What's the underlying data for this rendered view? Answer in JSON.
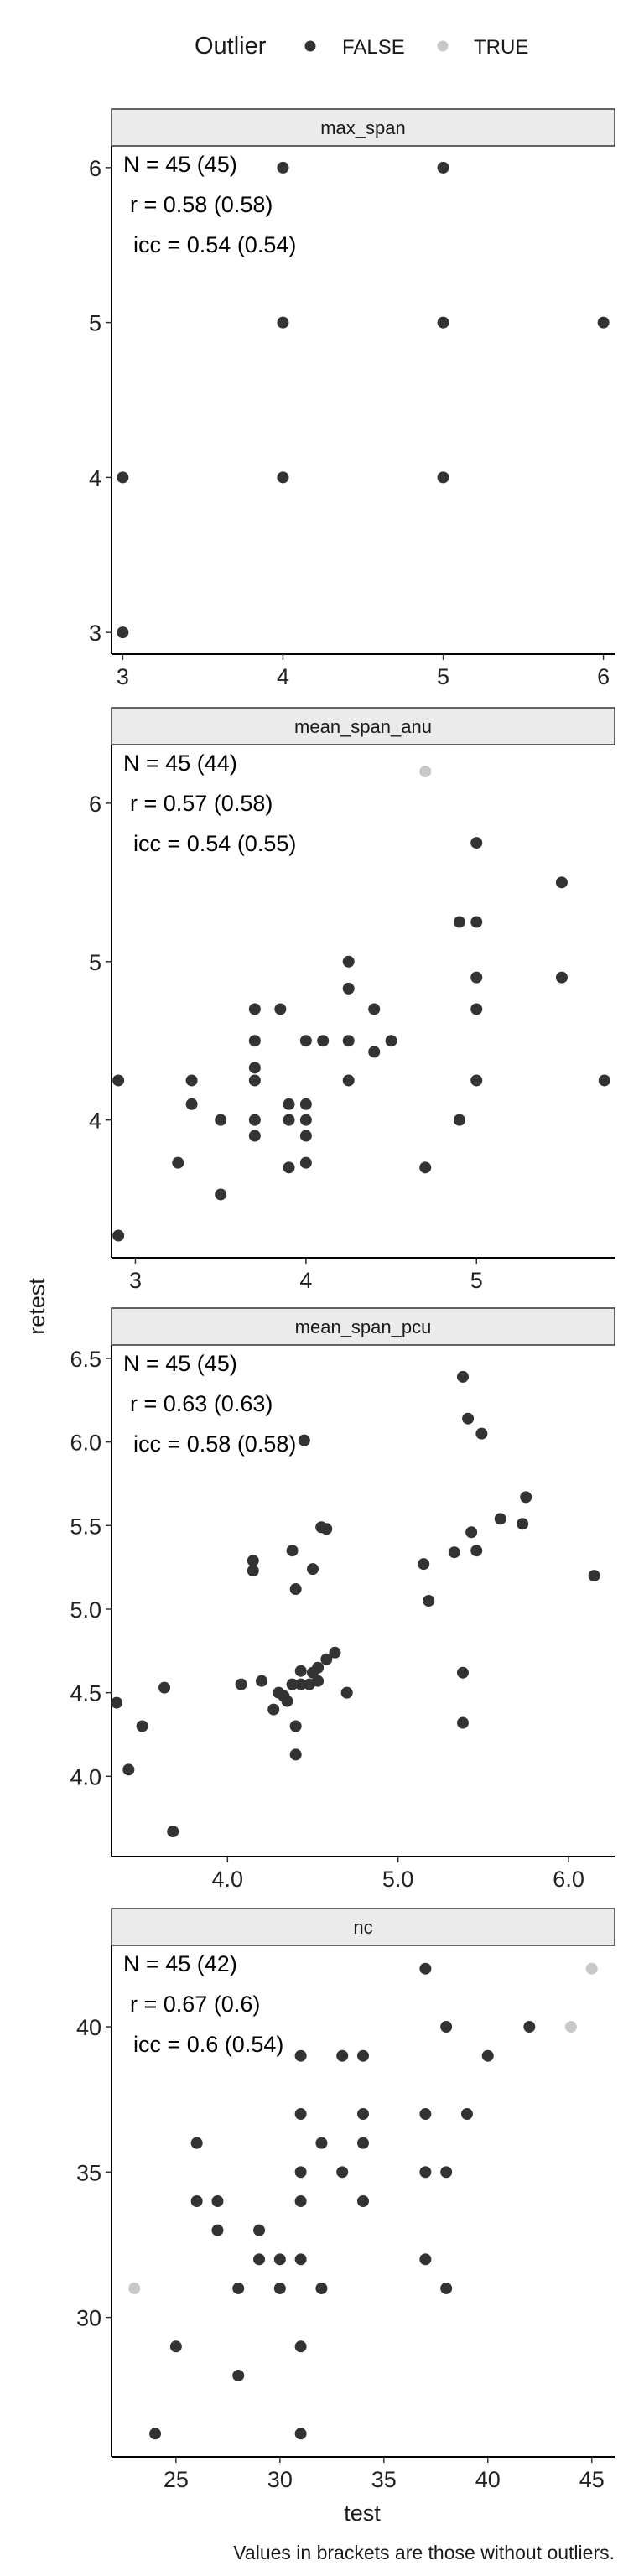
{
  "chart_data": {
    "type": "scatter",
    "xlabel": "test",
    "ylabel": "retest",
    "caption": "Values in brackets are those without outliers.",
    "legend": {
      "title": "Outlier",
      "placement": "top",
      "items": [
        {
          "label": "FALSE",
          "color": "#333333"
        },
        {
          "label": "TRUE",
          "color": "#c8c8c8"
        }
      ]
    },
    "facets": [
      {
        "name": "max_span",
        "stats": [
          "N = 45 (45)",
          "r = 0.58 (0.58)",
          "icc = 0.54 (0.54)"
        ],
        "xlim": [
          2.93,
          6.07
        ],
        "ylim": [
          2.86,
          6.14
        ],
        "xticks": [
          3,
          4,
          5,
          6
        ],
        "yticks": [
          3,
          4,
          5,
          6
        ],
        "tick_decimals": 0,
        "points": [
          {
            "x": 3,
            "y": 3,
            "outlier": false
          },
          {
            "x": 3,
            "y": 4,
            "outlier": false
          },
          {
            "x": 4,
            "y": 4,
            "outlier": false
          },
          {
            "x": 4,
            "y": 5,
            "outlier": false
          },
          {
            "x": 4,
            "y": 6,
            "outlier": false
          },
          {
            "x": 5,
            "y": 4,
            "outlier": false
          },
          {
            "x": 5,
            "y": 5,
            "outlier": false
          },
          {
            "x": 5,
            "y": 6,
            "outlier": false
          },
          {
            "x": 6,
            "y": 5,
            "outlier": false
          }
        ]
      },
      {
        "name": "mean_span_anu",
        "stats": [
          "N = 45 (44)",
          "r = 0.57 (0.58)",
          "icc = 0.54 (0.55)"
        ],
        "xlim": [
          2.86,
          5.81
        ],
        "ylim": [
          3.13,
          6.37
        ],
        "xticks": [
          3,
          4,
          5
        ],
        "yticks": [
          4,
          5,
          6
        ],
        "tick_decimals": 0,
        "points": [
          {
            "x": 2.9,
            "y": 3.27,
            "outlier": false
          },
          {
            "x": 2.9,
            "y": 4.25,
            "outlier": false
          },
          {
            "x": 3.25,
            "y": 3.73,
            "outlier": false
          },
          {
            "x": 3.33,
            "y": 4.1,
            "outlier": false
          },
          {
            "x": 3.33,
            "y": 4.25,
            "outlier": false
          },
          {
            "x": 3.5,
            "y": 3.53,
            "outlier": false
          },
          {
            "x": 3.5,
            "y": 4.0,
            "outlier": false
          },
          {
            "x": 3.7,
            "y": 3.9,
            "outlier": false
          },
          {
            "x": 3.7,
            "y": 4.0,
            "outlier": false
          },
          {
            "x": 3.7,
            "y": 4.25,
            "outlier": false
          },
          {
            "x": 3.7,
            "y": 4.33,
            "outlier": false
          },
          {
            "x": 3.7,
            "y": 4.5,
            "outlier": false
          },
          {
            "x": 3.7,
            "y": 4.7,
            "outlier": false
          },
          {
            "x": 3.85,
            "y": 4.7,
            "outlier": false
          },
          {
            "x": 3.9,
            "y": 3.7,
            "outlier": false
          },
          {
            "x": 3.9,
            "y": 4.0,
            "outlier": false
          },
          {
            "x": 3.9,
            "y": 4.1,
            "outlier": false
          },
          {
            "x": 4.0,
            "y": 3.73,
            "outlier": false
          },
          {
            "x": 4.0,
            "y": 3.9,
            "outlier": false
          },
          {
            "x": 4.0,
            "y": 4.0,
            "outlier": false
          },
          {
            "x": 4.0,
            "y": 4.1,
            "outlier": false
          },
          {
            "x": 4.0,
            "y": 4.5,
            "outlier": false
          },
          {
            "x": 4.1,
            "y": 4.5,
            "outlier": false
          },
          {
            "x": 4.25,
            "y": 4.25,
            "outlier": false
          },
          {
            "x": 4.25,
            "y": 4.5,
            "outlier": false
          },
          {
            "x": 4.25,
            "y": 4.83,
            "outlier": false
          },
          {
            "x": 4.25,
            "y": 5.0,
            "outlier": false
          },
          {
            "x": 4.4,
            "y": 4.43,
            "outlier": false
          },
          {
            "x": 4.4,
            "y": 4.7,
            "outlier": false
          },
          {
            "x": 4.5,
            "y": 4.5,
            "outlier": false
          },
          {
            "x": 4.7,
            "y": 3.7,
            "outlier": false
          },
          {
            "x": 4.7,
            "y": 6.2,
            "outlier": true
          },
          {
            "x": 4.9,
            "y": 4.0,
            "outlier": false
          },
          {
            "x": 4.9,
            "y": 5.25,
            "outlier": false
          },
          {
            "x": 5.0,
            "y": 4.25,
            "outlier": false
          },
          {
            "x": 5.0,
            "y": 4.7,
            "outlier": false
          },
          {
            "x": 5.0,
            "y": 4.9,
            "outlier": false
          },
          {
            "x": 5.0,
            "y": 5.25,
            "outlier": false
          },
          {
            "x": 5.0,
            "y": 5.75,
            "outlier": false
          },
          {
            "x": 5.5,
            "y": 4.9,
            "outlier": false
          },
          {
            "x": 5.5,
            "y": 5.5,
            "outlier": false
          },
          {
            "x": 5.75,
            "y": 4.25,
            "outlier": false
          }
        ]
      },
      {
        "name": "mean_span_pcu",
        "stats": [
          "N = 45 (45)",
          "r = 0.63 (0.63)",
          "icc = 0.58 (0.58)"
        ],
        "xlim": [
          3.32,
          6.27
        ],
        "ylim": [
          3.52,
          6.58
        ],
        "xticks": [
          4,
          5,
          6
        ],
        "yticks": [
          4.0,
          4.5,
          5.0,
          5.5,
          6.0,
          6.5
        ],
        "tick_decimals": 1,
        "points": [
          {
            "x": 3.35,
            "y": 4.44,
            "outlier": false
          },
          {
            "x": 3.42,
            "y": 4.04,
            "outlier": false
          },
          {
            "x": 3.5,
            "y": 4.3,
            "outlier": false
          },
          {
            "x": 3.63,
            "y": 4.53,
            "outlier": false
          },
          {
            "x": 3.68,
            "y": 3.67,
            "outlier": false
          },
          {
            "x": 4.08,
            "y": 4.55,
            "outlier": false
          },
          {
            "x": 4.15,
            "y": 5.23,
            "outlier": false
          },
          {
            "x": 4.15,
            "y": 5.29,
            "outlier": false
          },
          {
            "x": 4.2,
            "y": 4.57,
            "outlier": false
          },
          {
            "x": 4.27,
            "y": 4.4,
            "outlier": false
          },
          {
            "x": 4.3,
            "y": 4.5,
            "outlier": false
          },
          {
            "x": 4.33,
            "y": 4.48,
            "outlier": false
          },
          {
            "x": 4.35,
            "y": 4.45,
            "outlier": false
          },
          {
            "x": 4.38,
            "y": 4.55,
            "outlier": false
          },
          {
            "x": 4.38,
            "y": 5.35,
            "outlier": false
          },
          {
            "x": 4.4,
            "y": 4.13,
            "outlier": false
          },
          {
            "x": 4.4,
            "y": 4.3,
            "outlier": false
          },
          {
            "x": 4.4,
            "y": 5.12,
            "outlier": false
          },
          {
            "x": 4.43,
            "y": 4.55,
            "outlier": false
          },
          {
            "x": 4.43,
            "y": 4.63,
            "outlier": false
          },
          {
            "x": 4.45,
            "y": 6.01,
            "outlier": false
          },
          {
            "x": 4.48,
            "y": 4.55,
            "outlier": false
          },
          {
            "x": 4.5,
            "y": 4.62,
            "outlier": false
          },
          {
            "x": 4.5,
            "y": 5.24,
            "outlier": false
          },
          {
            "x": 4.53,
            "y": 4.57,
            "outlier": false
          },
          {
            "x": 4.53,
            "y": 4.65,
            "outlier": false
          },
          {
            "x": 4.55,
            "y": 5.49,
            "outlier": false
          },
          {
            "x": 4.58,
            "y": 5.48,
            "outlier": false
          },
          {
            "x": 4.58,
            "y": 4.7,
            "outlier": false
          },
          {
            "x": 4.63,
            "y": 4.74,
            "outlier": false
          },
          {
            "x": 4.7,
            "y": 4.5,
            "outlier": false
          },
          {
            "x": 5.15,
            "y": 5.27,
            "outlier": false
          },
          {
            "x": 5.18,
            "y": 5.05,
            "outlier": false
          },
          {
            "x": 5.33,
            "y": 5.34,
            "outlier": false
          },
          {
            "x": 5.38,
            "y": 4.32,
            "outlier": false
          },
          {
            "x": 5.38,
            "y": 4.62,
            "outlier": false
          },
          {
            "x": 5.38,
            "y": 6.39,
            "outlier": false
          },
          {
            "x": 5.41,
            "y": 6.14,
            "outlier": false
          },
          {
            "x": 5.43,
            "y": 5.46,
            "outlier": false
          },
          {
            "x": 5.46,
            "y": 5.35,
            "outlier": false
          },
          {
            "x": 5.49,
            "y": 6.05,
            "outlier": false
          },
          {
            "x": 5.6,
            "y": 5.54,
            "outlier": false
          },
          {
            "x": 5.73,
            "y": 5.51,
            "outlier": false
          },
          {
            "x": 5.75,
            "y": 5.67,
            "outlier": false
          },
          {
            "x": 6.15,
            "y": 5.2,
            "outlier": false
          }
        ]
      },
      {
        "name": "nc",
        "stats": [
          "N = 45 (42)",
          "r = 0.67 (0.6)",
          "icc = 0.6 (0.54)"
        ],
        "xlim": [
          21.9,
          46.1
        ],
        "ylim": [
          25.2,
          42.8
        ],
        "xticks": [
          25,
          30,
          35,
          40,
          45
        ],
        "yticks": [
          30,
          35,
          40
        ],
        "tick_decimals": 0,
        "points": [
          {
            "x": 23,
            "y": 31,
            "outlier": true
          },
          {
            "x": 24,
            "y": 26,
            "outlier": false
          },
          {
            "x": 25,
            "y": 29,
            "outlier": false
          },
          {
            "x": 26,
            "y": 34,
            "outlier": false
          },
          {
            "x": 26,
            "y": 36,
            "outlier": false
          },
          {
            "x": 27,
            "y": 33,
            "outlier": false
          },
          {
            "x": 27,
            "y": 34,
            "outlier": false
          },
          {
            "x": 28,
            "y": 28,
            "outlier": false
          },
          {
            "x": 28,
            "y": 31,
            "outlier": false
          },
          {
            "x": 29,
            "y": 32,
            "outlier": false
          },
          {
            "x": 29,
            "y": 33,
            "outlier": false
          },
          {
            "x": 30,
            "y": 31,
            "outlier": false
          },
          {
            "x": 30,
            "y": 32,
            "outlier": false
          },
          {
            "x": 31,
            "y": 26,
            "outlier": false
          },
          {
            "x": 31,
            "y": 29,
            "outlier": false
          },
          {
            "x": 31,
            "y": 32,
            "outlier": false
          },
          {
            "x": 31,
            "y": 34,
            "outlier": false
          },
          {
            "x": 31,
            "y": 35,
            "outlier": false
          },
          {
            "x": 31,
            "y": 37,
            "outlier": false
          },
          {
            "x": 31,
            "y": 39,
            "outlier": false
          },
          {
            "x": 32,
            "y": 31,
            "outlier": false
          },
          {
            "x": 32,
            "y": 36,
            "outlier": false
          },
          {
            "x": 33,
            "y": 35,
            "outlier": false
          },
          {
            "x": 33,
            "y": 39,
            "outlier": false
          },
          {
            "x": 34,
            "y": 34,
            "outlier": false
          },
          {
            "x": 34,
            "y": 36,
            "outlier": false
          },
          {
            "x": 34,
            "y": 37,
            "outlier": false
          },
          {
            "x": 34,
            "y": 39,
            "outlier": false
          },
          {
            "x": 37,
            "y": 32,
            "outlier": false
          },
          {
            "x": 37,
            "y": 35,
            "outlier": false
          },
          {
            "x": 37,
            "y": 37,
            "outlier": false
          },
          {
            "x": 37,
            "y": 42,
            "outlier": false
          },
          {
            "x": 38,
            "y": 31,
            "outlier": false
          },
          {
            "x": 38,
            "y": 35,
            "outlier": false
          },
          {
            "x": 38,
            "y": 40,
            "outlier": false
          },
          {
            "x": 39,
            "y": 37,
            "outlier": false
          },
          {
            "x": 40,
            "y": 39,
            "outlier": false
          },
          {
            "x": 42,
            "y": 40,
            "outlier": false
          },
          {
            "x": 44,
            "y": 40,
            "outlier": true
          },
          {
            "x": 45,
            "y": 42,
            "outlier": true
          }
        ]
      }
    ]
  }
}
